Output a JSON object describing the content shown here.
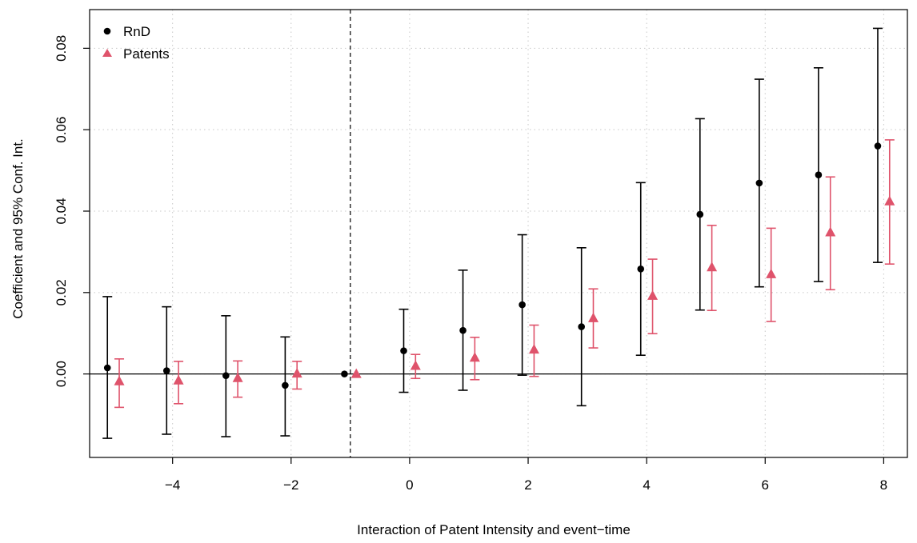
{
  "chart_data": {
    "type": "scatter",
    "title": "",
    "xlabel": "Interaction of Patent Intensity and event−time",
    "ylabel": "Coefficient and 95% Conf. Int.",
    "xlim": [
      -5.4,
      8.4
    ],
    "ylim": [
      -0.0205,
      0.0895
    ],
    "x_ticks": [
      -4,
      -2,
      0,
      2,
      4,
      6,
      8
    ],
    "x_tick_labels": [
      "−4",
      "−2",
      "0",
      "2",
      "4",
      "6",
      "8"
    ],
    "y_ticks": [
      0.0,
      0.02,
      0.04,
      0.06,
      0.08
    ],
    "y_tick_labels": [
      "0.00",
      "0.02",
      "0.04",
      "0.06",
      "0.08"
    ],
    "grid": true,
    "reference_lines": {
      "horizontal_y": 0,
      "vertical_x": -1
    },
    "legend": {
      "position": "top-left"
    },
    "series": [
      {
        "name": "RnD",
        "marker": "circle",
        "color": "#000000",
        "x_offset": -0.1,
        "x": [
          -5,
          -4,
          -3,
          -2,
          -1,
          0,
          1,
          2,
          3,
          4,
          5,
          6,
          7,
          8
        ],
        "y": [
          0.0015,
          0.0008,
          -0.0004,
          -0.0028,
          0.0,
          0.0057,
          0.0107,
          0.017,
          0.0116,
          0.0258,
          0.0392,
          0.0469,
          0.0489,
          0.056
        ],
        "ci_low": [
          -0.0158,
          -0.0148,
          -0.0154,
          -0.0152,
          null,
          -0.0045,
          -0.004,
          -0.0003,
          -0.0078,
          0.0046,
          0.0157,
          0.0214,
          0.0227,
          0.0274
        ],
        "ci_high": [
          0.019,
          0.0165,
          0.0143,
          0.0091,
          null,
          0.0159,
          0.0255,
          0.0342,
          0.031,
          0.047,
          0.0627,
          0.0724,
          0.0752,
          0.0849
        ]
      },
      {
        "name": "Patents",
        "marker": "triangle",
        "color": "#df536b",
        "x_offset": 0.1,
        "x": [
          -5,
          -4,
          -3,
          -2,
          -1,
          0,
          1,
          2,
          3,
          4,
          5,
          6,
          7,
          8
        ],
        "y": [
          -0.0018,
          -0.0016,
          -0.001,
          0.0001,
          0.0,
          0.002,
          0.004,
          0.006,
          0.0137,
          0.0192,
          0.0262,
          0.0245,
          0.0348,
          0.0424
        ],
        "ci_low": [
          -0.0082,
          -0.0073,
          -0.0057,
          -0.0037,
          null,
          -0.0011,
          -0.0014,
          -0.0006,
          0.0064,
          0.0099,
          0.0156,
          0.0129,
          0.0207,
          0.027
        ],
        "ci_high": [
          0.0037,
          0.0031,
          0.0032,
          0.0031,
          null,
          0.0048,
          0.009,
          0.012,
          0.0209,
          0.0282,
          0.0365,
          0.0358,
          0.0484,
          0.0575
        ]
      }
    ]
  }
}
